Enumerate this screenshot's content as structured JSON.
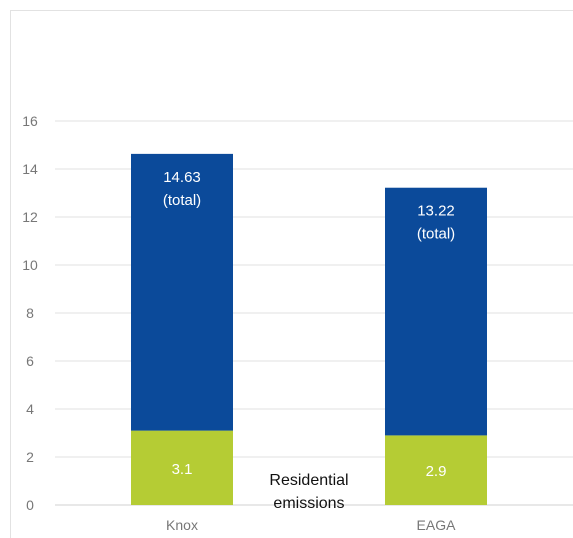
{
  "chart_data": {
    "type": "bar",
    "stacked": true,
    "categories": [
      "Knox",
      "EAGA"
    ],
    "series": [
      {
        "values": [
          3.1,
          2.9
        ],
        "color": "#b5cc34",
        "labels": [
          "3.1",
          "2.9"
        ]
      },
      {
        "values": [
          11.53,
          10.32
        ],
        "color": "#0b4a9a",
        "labels": [
          "14.63\n(total)",
          "13.22\n(total)"
        ]
      }
    ],
    "totals": [
      14.63,
      13.22
    ],
    "title": "",
    "xlabel": "",
    "ylabel": "",
    "ylim": [
      0,
      16
    ],
    "yticks": [
      0,
      2,
      4,
      6,
      8,
      10,
      12,
      14,
      16
    ],
    "grid": true,
    "legend": "none",
    "annotations": [
      {
        "text": "Residential\nemissions"
      }
    ]
  },
  "colors": {
    "grid": "#e2e2e2",
    "axis": "#d0d0d0",
    "tick_text": "#777777"
  }
}
